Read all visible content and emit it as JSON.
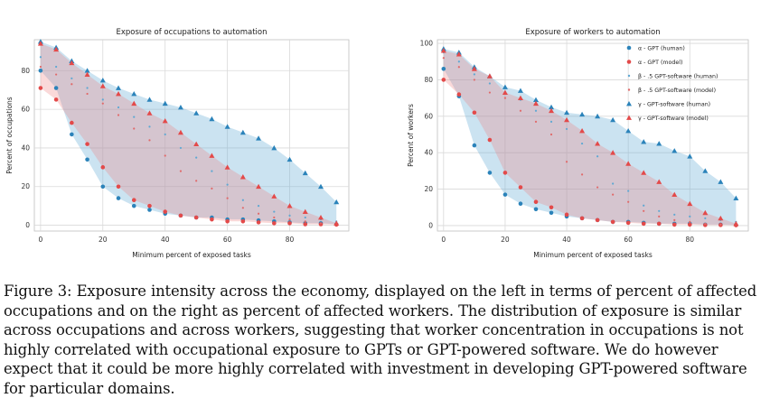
{
  "chart_data": [
    {
      "type": "scatter",
      "title": "Exposure of occupations to automation",
      "xlabel": "Minimum percent of exposed tasks",
      "ylabel": "Percent of occupations",
      "xlim": [
        -2,
        99
      ],
      "ylim": [
        -3,
        96
      ],
      "xticks": [
        0,
        20,
        40,
        60,
        80
      ],
      "yticks": [
        0,
        20,
        40,
        60,
        80
      ],
      "grid": true,
      "series": [
        {
          "name": "α - GPT (human)",
          "marker": "circle",
          "color": "#2b83ba",
          "bounds": "lower",
          "x": [
            0,
            5,
            10,
            15,
            20,
            25,
            30,
            35,
            40,
            45,
            50,
            55,
            60,
            65,
            70,
            75,
            80,
            85,
            90,
            95
          ],
          "values": [
            80,
            71,
            47,
            34,
            20,
            14,
            10,
            8,
            6,
            5,
            4,
            4,
            3,
            3,
            2.5,
            2,
            1.5,
            1,
            1,
            0.5
          ]
        },
        {
          "name": "α - GPT (model)",
          "marker": "circle",
          "color": "#e34a4a",
          "bounds": "lower",
          "x": [
            0,
            5,
            10,
            15,
            20,
            25,
            30,
            35,
            40,
            45,
            50,
            55,
            60,
            65,
            70,
            75,
            80,
            85,
            90,
            95
          ],
          "values": [
            71,
            65,
            53,
            42,
            30,
            20,
            13,
            10,
            7,
            5,
            4,
            3,
            2,
            2,
            1.5,
            1,
            1,
            0.5,
            0.5,
            0.3
          ]
        },
        {
          "name": "β - .5 GPT-software (human)",
          "marker": "dot",
          "color": "#5fa8d3",
          "bounds": "",
          "x": [
            0,
            5,
            10,
            15,
            20,
            25,
            30,
            35,
            40,
            45,
            50,
            55,
            60,
            65,
            70,
            75,
            80,
            85,
            90,
            95
          ],
          "values": [
            87,
            82,
            76,
            71,
            65,
            61,
            56,
            51,
            47,
            40,
            35,
            28,
            21,
            13,
            10,
            7,
            5,
            4,
            3,
            2
          ]
        },
        {
          "name": "β - .5 GPT-software (model)",
          "marker": "dot",
          "color": "#e06a6a",
          "bounds": "",
          "x": [
            0,
            5,
            10,
            15,
            20,
            25,
            30,
            35,
            40,
            45,
            50,
            55,
            60,
            65,
            70,
            75,
            80,
            85,
            90,
            95
          ],
          "values": [
            82,
            78,
            73,
            68,
            63,
            57,
            50,
            44,
            36,
            28,
            23,
            19,
            14,
            9,
            6,
            4,
            3,
            2,
            1,
            0.5
          ]
        },
        {
          "name": "γ - GPT-software (human)",
          "marker": "triangle",
          "color": "#2b83ba",
          "bounds": "upper",
          "x": [
            0,
            5,
            10,
            15,
            20,
            25,
            30,
            35,
            40,
            45,
            50,
            55,
            60,
            65,
            70,
            75,
            80,
            85,
            90,
            95
          ],
          "values": [
            95,
            92,
            85,
            80,
            75,
            71,
            68,
            65,
            63,
            61,
            58,
            55,
            51,
            48,
            45,
            40,
            34,
            27,
            20,
            12
          ]
        },
        {
          "name": "γ - GPT-software (model)",
          "marker": "triangle",
          "color": "#e34a4a",
          "bounds": "upper",
          "x": [
            0,
            5,
            10,
            15,
            20,
            25,
            30,
            35,
            40,
            45,
            50,
            55,
            60,
            65,
            70,
            75,
            80,
            85,
            90,
            95
          ],
          "values": [
            94,
            91,
            84,
            78,
            72,
            68,
            63,
            58,
            54,
            48,
            42,
            36,
            30,
            25,
            20,
            15,
            10,
            7,
            4,
            1
          ]
        }
      ]
    },
    {
      "type": "scatter",
      "title": "Exposure of workers to automation",
      "xlabel": "Minimum percent of exposed tasks",
      "ylabel": "Percent of workers",
      "xlim": [
        -2,
        99
      ],
      "ylim": [
        -3,
        102
      ],
      "xticks": [
        0,
        20,
        40,
        60,
        80
      ],
      "yticks": [
        0,
        20,
        40,
        60,
        80,
        100
      ],
      "grid": true,
      "legend": "top-right",
      "series": [
        {
          "name": "α - GPT (human)",
          "marker": "circle",
          "color": "#2b83ba",
          "bounds": "lower",
          "x": [
            0,
            5,
            10,
            15,
            20,
            25,
            30,
            35,
            40,
            45,
            50,
            55,
            60,
            65,
            70,
            75,
            80,
            85,
            90,
            95
          ],
          "values": [
            86,
            71,
            44,
            29,
            17,
            12,
            9,
            7,
            5,
            4,
            3,
            2,
            2,
            1.5,
            1,
            1,
            1,
            0.5,
            0.5,
            0.3
          ]
        },
        {
          "name": "α - GPT (model)",
          "marker": "circle",
          "color": "#e34a4a",
          "bounds": "lower",
          "x": [
            0,
            5,
            10,
            15,
            20,
            25,
            30,
            35,
            40,
            45,
            50,
            55,
            60,
            65,
            70,
            75,
            80,
            85,
            90,
            95
          ],
          "values": [
            80,
            72,
            62,
            47,
            29,
            21,
            13,
            10,
            6,
            4,
            3,
            2,
            1.5,
            1,
            1,
            0.5,
            0.5,
            0.3,
            0.3,
            0.2
          ]
        },
        {
          "name": "β - .5 GPT-software (human)",
          "marker": "dot",
          "color": "#5fa8d3",
          "bounds": "",
          "x": [
            0,
            5,
            10,
            15,
            20,
            25,
            30,
            35,
            40,
            45,
            50,
            55,
            60,
            65,
            70,
            75,
            80,
            85,
            90,
            95
          ],
          "values": [
            95,
            90,
            83,
            78,
            73,
            69,
            63,
            57,
            53,
            45,
            38,
            23,
            19,
            11,
            8,
            6,
            5,
            4,
            3,
            2
          ]
        },
        {
          "name": "β - .5 GPT-software (model)",
          "marker": "dot",
          "color": "#e06a6a",
          "bounds": "",
          "x": [
            0,
            5,
            10,
            15,
            20,
            25,
            30,
            35,
            40,
            45,
            50,
            55,
            60,
            65,
            70,
            75,
            80,
            85,
            90,
            95
          ],
          "values": [
            92,
            87,
            80,
            73,
            70,
            63,
            57,
            50,
            35,
            28,
            21,
            17,
            13,
            8,
            5,
            3,
            2,
            1,
            0.5,
            0.3
          ]
        },
        {
          "name": "γ - GPT-software (human)",
          "marker": "triangle",
          "color": "#2b83ba",
          "bounds": "upper",
          "x": [
            0,
            5,
            10,
            15,
            20,
            25,
            30,
            35,
            40,
            45,
            50,
            55,
            60,
            65,
            70,
            75,
            80,
            85,
            90,
            95
          ],
          "values": [
            97,
            95,
            87,
            82,
            76,
            74,
            69,
            65,
            62,
            61,
            60,
            58,
            52,
            46,
            45,
            41,
            38,
            30,
            24,
            15
          ]
        },
        {
          "name": "γ - GPT-software (model)",
          "marker": "triangle",
          "color": "#e34a4a",
          "bounds": "upper",
          "x": [
            0,
            5,
            10,
            15,
            20,
            25,
            30,
            35,
            40,
            45,
            50,
            55,
            60,
            65,
            70,
            75,
            80,
            85,
            90,
            95
          ],
          "values": [
            96,
            94,
            86,
            82,
            73,
            70,
            67,
            63,
            58,
            52,
            45,
            40,
            34,
            29,
            24,
            17,
            12,
            7,
            4,
            1
          ]
        }
      ]
    }
  ],
  "caption": "Figure 3:  Exposure intensity across the economy, displayed on the left in terms of percent of affected occupations and on the right as percent of affected workers. The distribution of exposure is similar across occupations and across workers, suggesting that worker concentration in occupations is not highly correlated with occupational exposure to GPTs or GPT-powered software. We do however expect that it could be more highly correlated with investment in developing GPT-powered software for particular domains."
}
